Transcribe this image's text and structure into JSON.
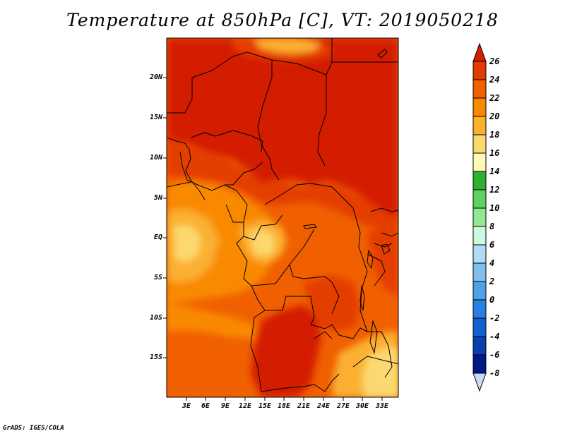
{
  "title": "Temperature at 850hPa [C], VT: 2019050218",
  "credit": "GrADS: IGES/COLA",
  "map": {
    "lat_range": [
      -20.5,
      24.5
    ],
    "lon_range": [
      0.3,
      36.3
    ],
    "lat_labels": [
      "20N",
      "15N",
      "10N",
      "5N",
      "EQ",
      "5S",
      "10S",
      "15S"
    ],
    "lon_labels": [
      "3E",
      "6E",
      "9E",
      "12E",
      "15E",
      "18E",
      "21E",
      "24E",
      "27E",
      "30E",
      "33E"
    ]
  },
  "colorbar": {
    "levels": [
      "26",
      "24",
      "22",
      "20",
      "18",
      "16",
      "14",
      "12",
      "10",
      "8",
      "6",
      "4",
      "2",
      "0",
      "-2",
      "-4",
      "-6",
      "-8"
    ],
    "colors": [
      "#d41e00",
      "#e43c00",
      "#f06000",
      "#f98a00",
      "#fbb030",
      "#fcd870",
      "#fff8b8",
      "#30b030",
      "#60d060",
      "#90e890",
      "#d0f8e0",
      "#b0dcf8",
      "#80c0f0",
      "#50a0e8",
      "#2880e0",
      "#1060d0",
      "#0840b0",
      "#00188a",
      "#d0d8f8"
    ]
  },
  "chart_data": {
    "type": "heatmap",
    "title": "Temperature at 850hPa [C], VT: 2019050218",
    "variable": "Temperature at 850hPa",
    "units": "C",
    "valid_time": "2019050218",
    "x_ticks": [
      "3E",
      "6E",
      "9E",
      "12E",
      "15E",
      "18E",
      "21E",
      "24E",
      "27E",
      "30E",
      "33E"
    ],
    "y_ticks": [
      "20N",
      "15N",
      "10N",
      "5N",
      "EQ",
      "5S",
      "10S",
      "15S"
    ],
    "color_levels": [
      -8,
      -6,
      -4,
      -2,
      0,
      2,
      4,
      6,
      8,
      10,
      12,
      14,
      16,
      18,
      20,
      22,
      24,
      26
    ]
  }
}
